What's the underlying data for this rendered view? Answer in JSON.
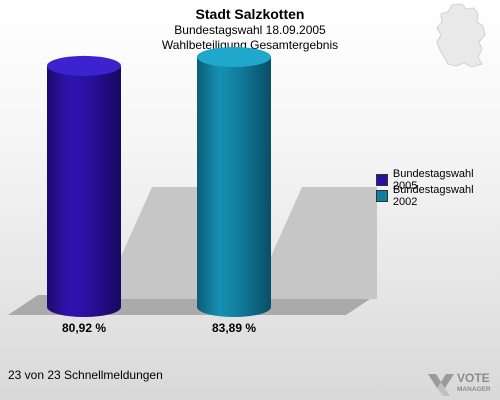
{
  "header": {
    "title": "Stadt Salzkotten",
    "subtitle": "Bundestagswahl 18.09.2005",
    "subtitle2": "Wahlbeteiligung Gesamtergebnis"
  },
  "footer": {
    "text": "23 von 23 Schnellmeldungen"
  },
  "logo": {
    "line1": "VOTE",
    "line2": "MANAGER"
  },
  "colors": {
    "series2005": "#2a10a0",
    "series2002": "#117e9e"
  },
  "chart_data": {
    "type": "bar",
    "title": "Wahlbeteiligung Gesamtergebnis",
    "categories": [
      "Bundestagswahl 2005",
      "Bundestagswahl 2002"
    ],
    "values": [
      80.92,
      83.89
    ],
    "value_labels": [
      "80,92 %",
      "83,89 %"
    ],
    "ylim": [
      0,
      100
    ],
    "grid": false,
    "legend": {
      "position": "right",
      "entries": [
        "Bundestagswahl 2005",
        "Bundestagswahl 2002"
      ]
    }
  }
}
